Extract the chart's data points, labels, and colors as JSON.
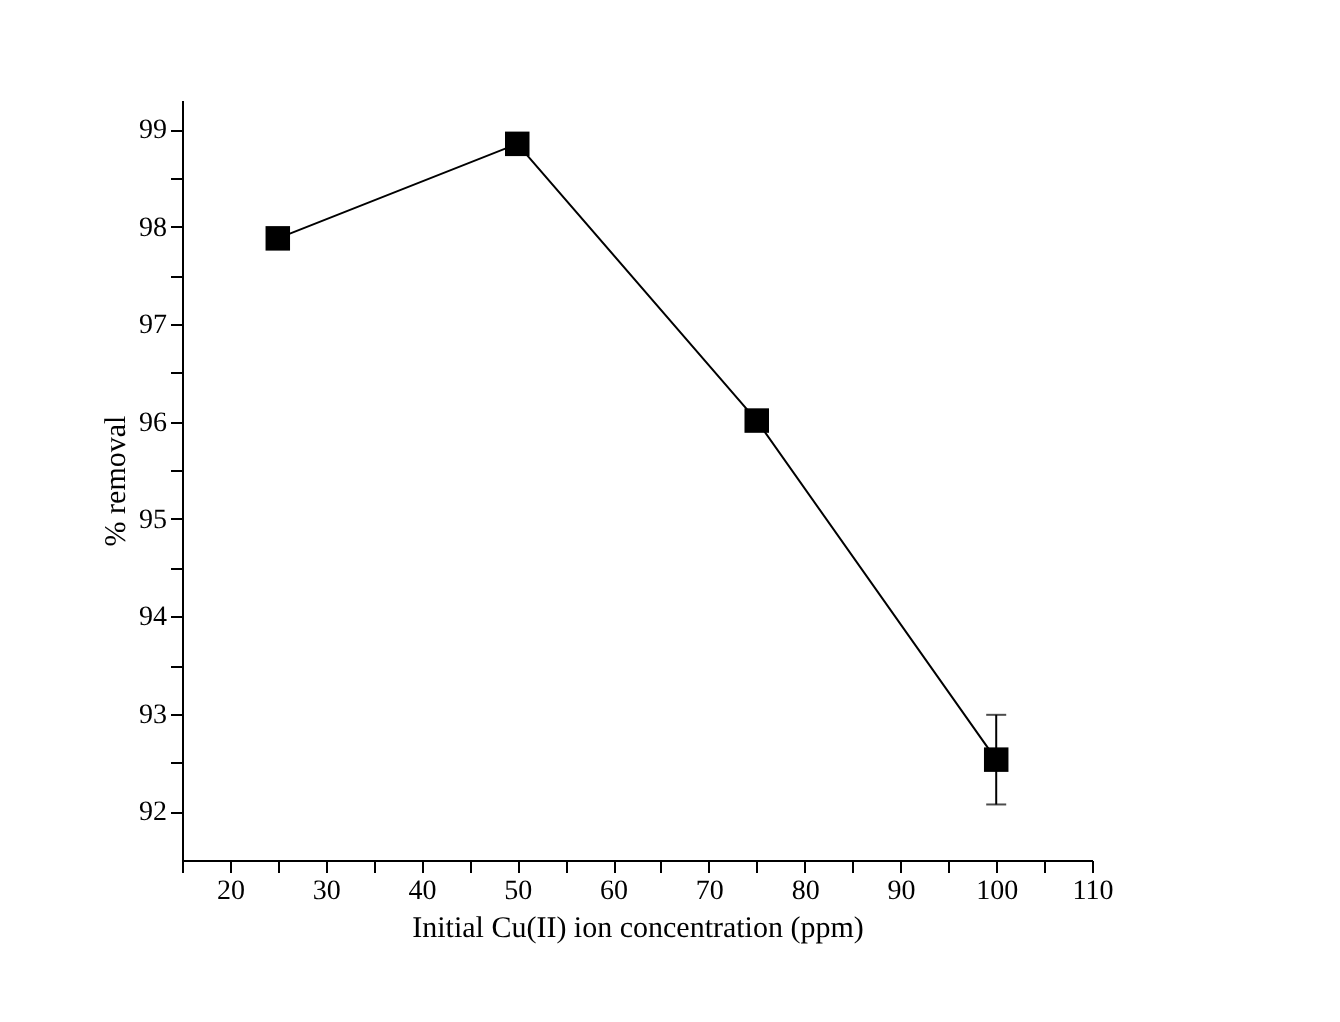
{
  "chart_data": {
    "type": "line",
    "xlabel": "Initial Cu(II) ion concentration (ppm)",
    "ylabel": "% removal",
    "x": [
      25,
      50,
      75,
      100
    ],
    "series": [
      {
        "color": "#000000",
        "values": [
          97.88,
          98.85,
          96.01,
          92.53
        ],
        "errors": [
          null,
          null,
          null,
          0.46
        ]
      }
    ],
    "xlim": [
      15,
      110
    ],
    "ylim": [
      91.5,
      99.3
    ],
    "xticks": [
      {
        "value": 15,
        "label": null
      },
      20,
      {
        "value": 25,
        "label": null
      },
      30,
      {
        "value": 35,
        "label": null
      },
      40,
      {
        "value": 45,
        "label": null
      },
      50,
      {
        "value": 55,
        "label": null
      },
      60,
      {
        "value": 65,
        "label": null
      },
      70,
      {
        "value": 75,
        "label": null
      },
      80,
      {
        "value": 85,
        "label": null
      },
      90,
      {
        "value": 95,
        "label": null
      },
      100,
      {
        "value": 105,
        "label": null
      },
      110
    ],
    "yticks": [
      92,
      {
        "value": 92.5,
        "label": null
      },
      93,
      {
        "value": 93.5,
        "label": null
      },
      94,
      {
        "value": 94.5,
        "label": null
      },
      95,
      {
        "value": 95.5,
        "label": null
      },
      96,
      {
        "value": 96.5,
        "label": null
      },
      97,
      {
        "value": 97.5,
        "label": null
      },
      98,
      {
        "value": 98.5,
        "label": null
      },
      99
    ],
    "marker": "square",
    "line_style": "solid",
    "grid": false
  }
}
